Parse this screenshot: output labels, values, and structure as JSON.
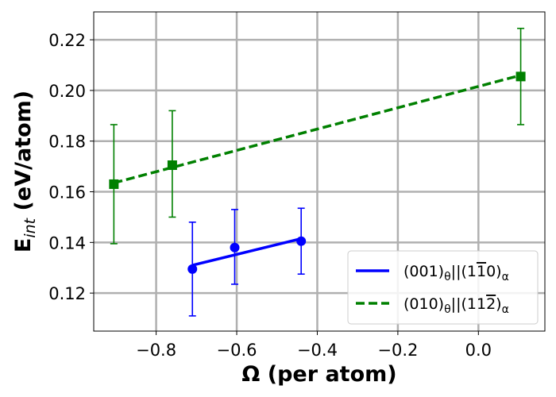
{
  "chart_data": {
    "type": "line",
    "xlabel": "Ω (per atom)",
    "ylabel": {
      "main": "E",
      "subscript": "int",
      "rest": " (eV/atom)"
    },
    "xlim": [
      -0.955,
      0.165
    ],
    "ylim": [
      0.105,
      0.231
    ],
    "xticks": [
      -0.8,
      -0.6,
      -0.4,
      -0.2,
      0.0
    ],
    "xtick_labels": [
      "−0.8",
      "−0.6",
      "−0.4",
      "−0.2",
      "0.0"
    ],
    "yticks": [
      0.12,
      0.14,
      0.16,
      0.18,
      0.2,
      0.22
    ],
    "ytick_labels": [
      "0.12",
      "0.14",
      "0.16",
      "0.18",
      "0.20",
      "0.22"
    ],
    "grid": true,
    "legend_position": "lower-right",
    "series": [
      {
        "name": "(001)θ||(11̄0)α",
        "legend_parts": [
          {
            "t": "(001)"
          },
          {
            "t": "θ",
            "sub": true
          },
          {
            "t": "||(1"
          },
          {
            "t": "1",
            "bar": true
          },
          {
            "t": "0)"
          },
          {
            "t": "α",
            "sub": true
          }
        ],
        "color": "#0000ff",
        "linestyle": "solid",
        "marker": "circle",
        "x": [
          -0.71,
          -0.605,
          -0.44
        ],
        "y": [
          0.1295,
          0.138,
          0.1405
        ],
        "yerr_low": [
          0.111,
          0.1235,
          0.1275
        ],
        "yerr_high": [
          0.148,
          0.153,
          0.1535
        ],
        "fit": {
          "x": [
            -0.71,
            -0.44
          ],
          "y": [
            0.131,
            0.1415
          ]
        }
      },
      {
        "name": "(010)θ||(112̄)α",
        "legend_parts": [
          {
            "t": "(010)"
          },
          {
            "t": "θ",
            "sub": true
          },
          {
            "t": "||(11"
          },
          {
            "t": "2",
            "bar": true
          },
          {
            "t": ")"
          },
          {
            "t": "α",
            "sub": true
          }
        ],
        "color": "#008000",
        "linestyle": "dashed",
        "marker": "square",
        "x": [
          -0.905,
          -0.76,
          0.105
        ],
        "y": [
          0.163,
          0.1705,
          0.2055
        ],
        "yerr_low": [
          0.1395,
          0.15,
          0.1865
        ],
        "yerr_high": [
          0.1865,
          0.192,
          0.2245
        ],
        "fit": {
          "x": [
            -0.905,
            0.105
          ],
          "y": [
            0.1635,
            0.206
          ]
        }
      }
    ]
  }
}
